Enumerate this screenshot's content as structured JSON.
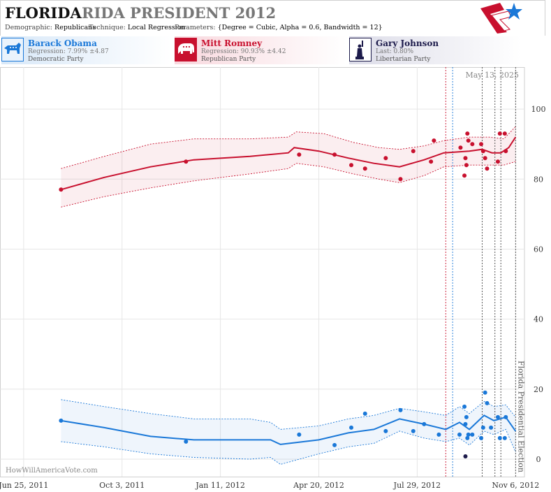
{
  "header": {
    "state": "FLORIDA",
    "title_rest": "RIDA PRESIDENT 2012",
    "demographic_label": "Demographic:",
    "demographic_value": "Republicans",
    "technique_label": "Technique:",
    "technique_value": "Local Regression",
    "parameters_label": "Parameters:",
    "parameters_value": "{Degree = Cubic, Alpha = 0.6, Bandwidth = 12}"
  },
  "candidates": [
    {
      "name": "Barack Obama",
      "stat": "Regression: 7.99% ±4.87",
      "party": "Democratic Party",
      "color": "#1a78d8",
      "icon": "donkey-icon"
    },
    {
      "name": "Mitt Romney",
      "stat": "Regression: 90.93% ±4.42",
      "party": "Republican Party",
      "color": "#c8102e",
      "icon": "elephant-icon"
    },
    {
      "name": "Gary Johnson",
      "stat": "Last: 0.80%",
      "party": "Libertarian Party",
      "color": "#1c1a4a",
      "icon": "statue-of-liberty-icon"
    }
  ],
  "footer": {
    "site": "HowWillAmericaVote.com"
  },
  "chart_data": {
    "type": "scatter",
    "title": "FLORIDA RIDA PRESIDENT 2012",
    "date_label": "May 13, 2025",
    "election_label": "Florida Presidential Election",
    "x_ticks": [
      "Jun 25, 2011",
      "Oct 3, 2011",
      "Jan 11, 2012",
      "Apr 20, 2012",
      "Jul 29, 2012",
      "Nov 6, 2012"
    ],
    "xlim": [
      "2011-06-01",
      "2012-11-15"
    ],
    "y_ticks": [
      0,
      20,
      40,
      60,
      80,
      100
    ],
    "ylim": [
      -5,
      112
    ],
    "grid": true,
    "vertical_markers": [
      {
        "date": "2012-08-27",
        "color": "#c8102e"
      },
      {
        "date": "2012-09-03",
        "color": "#1a78d8"
      },
      {
        "date": "2012-10-03",
        "color": "#444444"
      },
      {
        "date": "2012-10-16",
        "color": "#444444"
      },
      {
        "date": "2012-10-22",
        "color": "#444444"
      },
      {
        "date": "2012-11-06",
        "color": "#444444"
      }
    ],
    "series": [
      {
        "name": "Mitt Romney",
        "color": "#c8102e",
        "trend": [
          [
            "2011-08-02",
            77
          ],
          [
            "2011-09-15",
            80.5
          ],
          [
            "2011-11-01",
            83.5
          ],
          [
            "2011-12-15",
            85.5
          ],
          [
            "2012-02-10",
            86.5
          ],
          [
            "2012-03-20",
            87.5
          ],
          [
            "2012-03-26",
            89
          ],
          [
            "2012-04-20",
            88
          ],
          [
            "2012-05-20",
            86
          ],
          [
            "2012-06-15",
            84.5
          ],
          [
            "2012-07-11",
            83.5
          ],
          [
            "2012-08-05",
            85.5
          ],
          [
            "2012-08-25",
            87.5
          ],
          [
            "2012-09-20",
            88
          ],
          [
            "2012-10-03",
            88.5
          ],
          [
            "2012-10-13",
            87.5
          ],
          [
            "2012-10-22",
            87.5
          ],
          [
            "2012-10-30",
            89
          ],
          [
            "2012-11-06",
            92
          ]
        ],
        "upper": [
          [
            "2011-08-02",
            83
          ],
          [
            "2011-09-15",
            86.5
          ],
          [
            "2011-11-01",
            90
          ],
          [
            "2011-12-15",
            91.5
          ],
          [
            "2012-02-10",
            91.5
          ],
          [
            "2012-03-20",
            92
          ],
          [
            "2012-03-28",
            93.5
          ],
          [
            "2012-04-25",
            93
          ],
          [
            "2012-05-25",
            90.5
          ],
          [
            "2012-06-20",
            89
          ],
          [
            "2012-07-11",
            88.5
          ],
          [
            "2012-08-05",
            89.5
          ],
          [
            "2012-08-25",
            91
          ],
          [
            "2012-09-20",
            92
          ],
          [
            "2012-10-10",
            92
          ],
          [
            "2012-10-25",
            91.5
          ],
          [
            "2012-11-06",
            95
          ]
        ],
        "lower": [
          [
            "2011-08-02",
            72
          ],
          [
            "2011-09-15",
            75
          ],
          [
            "2011-11-01",
            77.5
          ],
          [
            "2011-12-15",
            79.5
          ],
          [
            "2012-02-10",
            81.5
          ],
          [
            "2012-03-20",
            83
          ],
          [
            "2012-03-28",
            84.5
          ],
          [
            "2012-04-25",
            83.5
          ],
          [
            "2012-05-25",
            81.5
          ],
          [
            "2012-06-20",
            80
          ],
          [
            "2012-07-11",
            79
          ],
          [
            "2012-08-05",
            81
          ],
          [
            "2012-08-25",
            83.5
          ],
          [
            "2012-09-20",
            84
          ],
          [
            "2012-10-10",
            84
          ],
          [
            "2012-10-25",
            84
          ],
          [
            "2012-11-06",
            85
          ]
        ],
        "points": [
          [
            "2011-08-02",
            77
          ],
          [
            "2011-12-07",
            85
          ],
          [
            "2012-03-31",
            87
          ],
          [
            "2012-05-06",
            87
          ],
          [
            "2012-05-23",
            84
          ],
          [
            "2012-06-06",
            83
          ],
          [
            "2012-06-27",
            86
          ],
          [
            "2012-07-12",
            80
          ],
          [
            "2012-07-25",
            88
          ],
          [
            "2012-08-12",
            85
          ],
          [
            "2012-08-15",
            91
          ],
          [
            "2012-09-11",
            89
          ],
          [
            "2012-09-15",
            81
          ],
          [
            "2012-09-16",
            86
          ],
          [
            "2012-09-17",
            84
          ],
          [
            "2012-09-18",
            93
          ],
          [
            "2012-09-19",
            91
          ],
          [
            "2012-09-23",
            90
          ],
          [
            "2012-10-02",
            90
          ],
          [
            "2012-10-04",
            88
          ],
          [
            "2012-10-06",
            86
          ],
          [
            "2012-10-08",
            83
          ],
          [
            "2012-10-19",
            85
          ],
          [
            "2012-10-21",
            93
          ],
          [
            "2012-10-26",
            93
          ],
          [
            "2012-10-27",
            88
          ]
        ]
      },
      {
        "name": "Barack Obama",
        "color": "#1a78d8",
        "trend": [
          [
            "2011-08-02",
            11
          ],
          [
            "2011-09-15",
            9
          ],
          [
            "2011-11-01",
            6.5
          ],
          [
            "2011-12-15",
            5.5
          ],
          [
            "2012-02-10",
            5.5
          ],
          [
            "2012-03-02",
            5.5
          ],
          [
            "2012-03-12",
            4.2
          ],
          [
            "2012-04-20",
            5.5
          ],
          [
            "2012-05-20",
            7.5
          ],
          [
            "2012-06-15",
            8.5
          ],
          [
            "2012-07-11",
            11.5
          ],
          [
            "2012-08-05",
            10
          ],
          [
            "2012-08-27",
            8.5
          ],
          [
            "2012-09-10",
            10.5
          ],
          [
            "2012-09-20",
            8.5
          ],
          [
            "2012-10-05",
            12.5
          ],
          [
            "2012-10-15",
            11
          ],
          [
            "2012-10-27",
            12
          ],
          [
            "2012-11-06",
            8
          ]
        ],
        "upper": [
          [
            "2011-08-02",
            17
          ],
          [
            "2011-09-15",
            15
          ],
          [
            "2011-11-01",
            13
          ],
          [
            "2011-12-15",
            11.5
          ],
          [
            "2012-02-10",
            11.5
          ],
          [
            "2012-03-02",
            10.5
          ],
          [
            "2012-03-12",
            8.5
          ],
          [
            "2012-04-20",
            9.5
          ],
          [
            "2012-05-20",
            11.5
          ],
          [
            "2012-06-15",
            12.5
          ],
          [
            "2012-07-11",
            14.5
          ],
          [
            "2012-08-05",
            13.5
          ],
          [
            "2012-08-27",
            12.5
          ],
          [
            "2012-09-10",
            15
          ],
          [
            "2012-09-20",
            13
          ],
          [
            "2012-10-05",
            16.5
          ],
          [
            "2012-10-15",
            15
          ],
          [
            "2012-10-27",
            15.5
          ],
          [
            "2012-11-06",
            12
          ]
        ],
        "lower": [
          [
            "2011-08-02",
            5
          ],
          [
            "2011-09-15",
            3.5
          ],
          [
            "2011-11-01",
            1.5
          ],
          [
            "2011-12-15",
            0.5
          ],
          [
            "2012-02-10",
            0
          ],
          [
            "2012-03-02",
            0.5
          ],
          [
            "2012-03-12",
            -1.5
          ],
          [
            "2012-04-20",
            1.5
          ],
          [
            "2012-05-20",
            3.5
          ],
          [
            "2012-06-15",
            4.5
          ],
          [
            "2012-07-11",
            8
          ],
          [
            "2012-08-05",
            6
          ],
          [
            "2012-08-27",
            5
          ],
          [
            "2012-09-10",
            6
          ],
          [
            "2012-09-20",
            4
          ],
          [
            "2012-10-05",
            8
          ],
          [
            "2012-10-15",
            7
          ],
          [
            "2012-10-27",
            8.5
          ],
          [
            "2012-11-06",
            2
          ]
        ],
        "points": [
          [
            "2011-08-02",
            11
          ],
          [
            "2011-12-07",
            5
          ],
          [
            "2012-03-31",
            7
          ],
          [
            "2012-05-06",
            4
          ],
          [
            "2012-05-23",
            9
          ],
          [
            "2012-06-06",
            13
          ],
          [
            "2012-06-27",
            8
          ],
          [
            "2012-07-12",
            14
          ],
          [
            "2012-07-25",
            8
          ],
          [
            "2012-08-05",
            10
          ],
          [
            "2012-08-20",
            7
          ],
          [
            "2012-09-10",
            7
          ],
          [
            "2012-09-15",
            15
          ],
          [
            "2012-09-16",
            10
          ],
          [
            "2012-09-17",
            12
          ],
          [
            "2012-09-18",
            6
          ],
          [
            "2012-09-19",
            7
          ],
          [
            "2012-09-23",
            7
          ],
          [
            "2012-10-02",
            6
          ],
          [
            "2012-10-04",
            9
          ],
          [
            "2012-10-06",
            19
          ],
          [
            "2012-10-08",
            16
          ],
          [
            "2012-10-12",
            9
          ],
          [
            "2012-10-19",
            12
          ],
          [
            "2012-10-21",
            6
          ],
          [
            "2012-10-26",
            6
          ],
          [
            "2012-10-27",
            12
          ]
        ]
      },
      {
        "name": "Gary Johnson",
        "color": "#1c1a4a",
        "points": [
          [
            "2012-09-16",
            0.8
          ]
        ]
      }
    ]
  }
}
